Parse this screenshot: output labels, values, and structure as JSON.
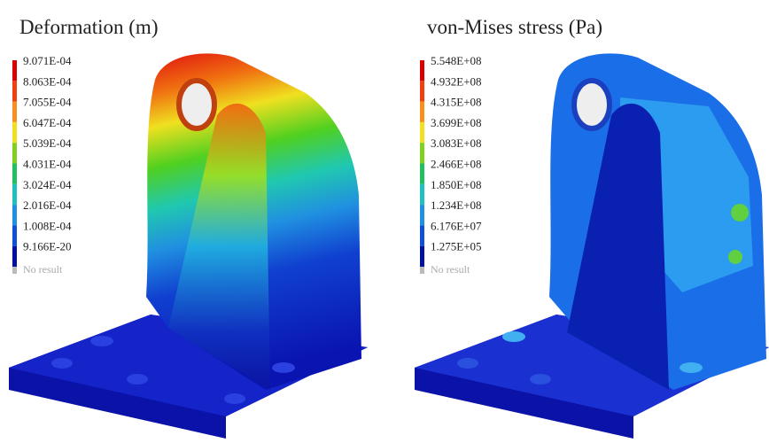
{
  "panels": [
    {
      "title": "Deformation (m)",
      "legend": [
        "9.071E-04",
        "8.063E-04",
        "7.055E-04",
        "6.047E-04",
        "5.039E-04",
        "4.031E-04",
        "3.024E-04",
        "2.016E-04",
        "1.008E-04",
        "9.166E-20"
      ],
      "no_result": "No result"
    },
    {
      "title": "von-Mises stress (Pa)",
      "legend": [
        "5.548E+08",
        "4.932E+08",
        "4.315E+08",
        "3.699E+08",
        "3.083E+08",
        "2.466E+08",
        "1.850E+08",
        "1.234E+08",
        "6.176E+07",
        "1.275E+05"
      ],
      "no_result": "No result"
    }
  ]
}
